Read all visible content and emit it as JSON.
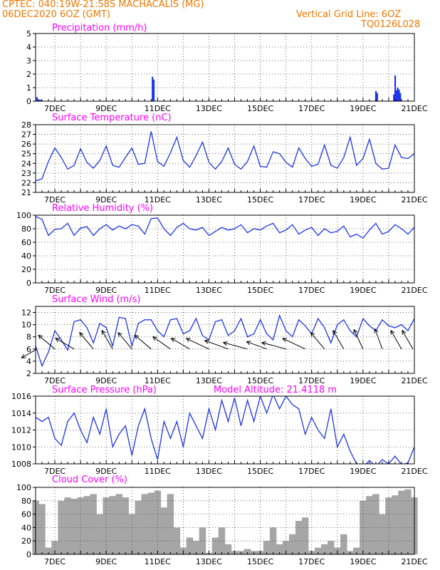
{
  "header": {
    "line1_left": "CPTEC:   040:19W-21:58S   MACHACALIS (MG)",
    "line2_left": "06DEC2020 6OZ (GMT)",
    "line1_right": "Vertical Grid Line: 6OZ",
    "line2_right": "TQ0126L028"
  },
  "colors": {
    "header": "#f07800",
    "title": "#ff00ff",
    "line": "#1f35e8",
    "cloud": "#a6a6a6"
  },
  "chart_data": [
    {
      "id": "precip",
      "type": "bar",
      "title": "Precipitation (mm/h)",
      "ylim": [
        0,
        5
      ],
      "yticks": [
        0,
        1,
        2,
        3,
        4,
        5
      ],
      "xlim": [
        6.25,
        21.0
      ],
      "xticks": [
        7,
        9,
        11,
        13,
        15,
        17,
        19,
        21
      ],
      "xticklabels": [
        "7DEC",
        "9DEC",
        "11DEC",
        "13DEC",
        "15DEC",
        "17DEC",
        "19DEC",
        "21DEC"
      ],
      "x": [
        6.3,
        6.35,
        6.4,
        6.45,
        10.8,
        10.85,
        19.5,
        19.55,
        20.2,
        20.25,
        20.3,
        20.35,
        20.4,
        20.45
      ],
      "values": [
        0.3,
        0.15,
        0.1,
        0.1,
        1.8,
        1.6,
        0.75,
        0.6,
        0.5,
        1.9,
        0.8,
        1.0,
        0.85,
        0.6
      ]
    },
    {
      "id": "temp",
      "type": "line",
      "title": "Surface Temperature (nC)",
      "ylim": [
        21,
        28
      ],
      "yticks": [
        21,
        22,
        23,
        24,
        25,
        26,
        27,
        28
      ],
      "xlim": [
        6.25,
        21.0
      ],
      "xticks": [
        7,
        9,
        11,
        13,
        15,
        17,
        19,
        21
      ],
      "xticklabels": [
        "7DEC",
        "9DEC",
        "11DEC",
        "13DEC",
        "15DEC",
        "17DEC",
        "19DEC",
        "21DEC"
      ],
      "x": [
        6.25,
        6.5,
        6.75,
        7.0,
        7.25,
        7.5,
        7.75,
        8.0,
        8.25,
        8.5,
        8.75,
        9.0,
        9.25,
        9.5,
        9.75,
        10.0,
        10.25,
        10.5,
        10.75,
        11.0,
        11.25,
        11.5,
        11.75,
        12.0,
        12.25,
        12.5,
        12.75,
        13.0,
        13.25,
        13.5,
        13.75,
        14.0,
        14.25,
        14.5,
        14.75,
        15.0,
        15.25,
        15.5,
        15.75,
        16.0,
        16.25,
        16.5,
        16.75,
        17.0,
        17.25,
        17.5,
        17.75,
        18.0,
        18.25,
        18.5,
        18.75,
        19.0,
        19.25,
        19.5,
        19.75,
        20.0,
        20.25,
        20.5,
        20.75,
        21.0
      ],
      "values": [
        22.2,
        22.4,
        24.2,
        25.6,
        24.6,
        23.4,
        23.8,
        25.5,
        24.1,
        23.5,
        24.3,
        25.8,
        23.8,
        23.6,
        24.6,
        25.6,
        23.9,
        24.0,
        27.3,
        24.2,
        23.7,
        25.1,
        26.7,
        24.3,
        23.6,
        24.8,
        26.2,
        24.1,
        23.4,
        24.2,
        25.6,
        23.9,
        23.4,
        24.2,
        25.8,
        23.7,
        23.6,
        25.2,
        25.0,
        24.1,
        23.6,
        25.6,
        24.5,
        23.7,
        23.9,
        25.9,
        23.8,
        23.5,
        24.6,
        26.7,
        23.8,
        24.5,
        26.5,
        24.0,
        23.4,
        23.5,
        25.9,
        24.6,
        24.5,
        25.0
      ]
    },
    {
      "id": "rh",
      "type": "line",
      "title": "Relative Humidity (%)",
      "ylim": [
        0,
        100
      ],
      "yticks": [
        0,
        20,
        40,
        60,
        80,
        100
      ],
      "xlim": [
        6.25,
        21.0
      ],
      "xticks": [
        7,
        9,
        11,
        13,
        15,
        17,
        19,
        21
      ],
      "xticklabels": [
        "7DEC",
        "9DEC",
        "11DEC",
        "13DEC",
        "15DEC",
        "17DEC",
        "19DEC",
        "21DEC"
      ],
      "x": [
        6.25,
        6.5,
        6.75,
        7.0,
        7.25,
        7.5,
        7.75,
        8.0,
        8.25,
        8.5,
        8.75,
        9.0,
        9.25,
        9.5,
        9.75,
        10.0,
        10.25,
        10.5,
        10.75,
        11.0,
        11.25,
        11.5,
        11.75,
        12.0,
        12.25,
        12.5,
        12.75,
        13.0,
        13.25,
        13.5,
        13.75,
        14.0,
        14.25,
        14.5,
        14.75,
        15.0,
        15.25,
        15.5,
        15.75,
        16.0,
        16.25,
        16.5,
        16.75,
        17.0,
        17.25,
        17.5,
        17.75,
        18.0,
        18.25,
        18.5,
        18.75,
        19.0,
        19.25,
        19.5,
        19.75,
        20.0,
        20.25,
        20.5,
        20.75,
        21.0
      ],
      "values": [
        98,
        94,
        70,
        79,
        80,
        88,
        70,
        81,
        83,
        70,
        80,
        86,
        78,
        84,
        80,
        86,
        84,
        72,
        95,
        96,
        80,
        70,
        82,
        88,
        80,
        78,
        82,
        70,
        76,
        82,
        78,
        80,
        86,
        74,
        80,
        78,
        84,
        88,
        74,
        78,
        86,
        72,
        78,
        82,
        70,
        80,
        74,
        76,
        84,
        68,
        72,
        66,
        78,
        88,
        72,
        76,
        86,
        80,
        72,
        82
      ]
    },
    {
      "id": "wind",
      "type": "line",
      "title": "Surface Wind (m/s)",
      "ylim": [
        2,
        13
      ],
      "yticks": [
        2,
        4,
        6,
        8,
        10,
        12
      ],
      "xlim": [
        6.25,
        21.0
      ],
      "xticks": [
        7,
        9,
        11,
        13,
        15,
        17,
        19,
        21
      ],
      "xticklabels": [
        "7DEC",
        "9DEC",
        "11DEC",
        "13DEC",
        "15DEC",
        "17DEC",
        "19DEC",
        "21DEC"
      ],
      "x": [
        6.25,
        6.5,
        6.75,
        7.0,
        7.25,
        7.5,
        7.75,
        8.0,
        8.25,
        8.5,
        8.75,
        9.0,
        9.25,
        9.5,
        9.75,
        10.0,
        10.25,
        10.5,
        10.75,
        11.0,
        11.25,
        11.5,
        11.75,
        12.0,
        12.25,
        12.5,
        12.75,
        13.0,
        13.25,
        13.5,
        13.75,
        14.0,
        14.25,
        14.5,
        14.75,
        15.0,
        15.25,
        15.5,
        15.75,
        16.0,
        16.25,
        16.5,
        16.75,
        17.0,
        17.25,
        17.5,
        17.75,
        18.0,
        18.25,
        18.5,
        18.75,
        19.0,
        19.25,
        19.5,
        19.75,
        20.0,
        20.25,
        20.5,
        20.75,
        21.0
      ],
      "values": [
        6.5,
        3.2,
        5.5,
        9.0,
        7.5,
        5.8,
        10.5,
        10.8,
        9.5,
        7.0,
        10.2,
        9.5,
        6.5,
        11.2,
        11.0,
        6.5,
        10.2,
        10.8,
        10.8,
        9.0,
        8.0,
        10.8,
        11.0,
        8.5,
        9.0,
        11.0,
        8.2,
        7.5,
        10.5,
        10.8,
        8.2,
        9.0,
        11.0,
        8.0,
        8.5,
        10.8,
        8.5,
        7.5,
        11.5,
        9.0,
        8.0,
        10.8,
        9.8,
        8.5,
        11.0,
        9.5,
        7.0,
        10.0,
        10.8,
        9.0,
        8.0,
        11.0,
        9.8,
        9.0,
        10.8,
        9.8,
        9.5,
        10.0,
        9.0,
        11.0
      ],
      "vector_x": [
        6.25,
        7.0,
        7.75,
        8.5,
        9.25,
        10.0,
        10.75,
        11.5,
        12.25,
        13.0,
        13.75,
        14.5,
        15.25,
        16.0,
        16.75,
        17.5,
        18.25,
        19.0,
        19.75,
        20.5,
        21.0
      ],
      "vector_dir_deg": [
        150,
        220,
        210,
        230,
        240,
        230,
        220,
        215,
        210,
        205,
        200,
        195,
        200,
        195,
        205,
        230,
        240,
        245,
        250,
        240,
        240
      ],
      "vector_len": [
        5,
        6,
        6,
        6,
        6,
        6,
        6,
        6,
        6,
        7,
        7,
        7,
        6,
        7,
        7,
        6,
        6,
        6,
        6,
        6,
        6
      ]
    },
    {
      "id": "pressure",
      "type": "line",
      "title": "Surface Pressure (hPa)",
      "annotation": "Model Altitude: 21.4118 m",
      "ylim": [
        1008,
        1016
      ],
      "yticks": [
        1008,
        1010,
        1012,
        1014,
        1016
      ],
      "xlim": [
        6.25,
        21.0
      ],
      "xticks": [
        7,
        9,
        11,
        13,
        15,
        17,
        19,
        21
      ],
      "xticklabels": [
        "7DEC",
        "9DEC",
        "11DEC",
        "13DEC",
        "15DEC",
        "17DEC",
        "19DEC",
        "21DEC"
      ],
      "x": [
        6.25,
        6.5,
        6.75,
        7.0,
        7.25,
        7.5,
        7.75,
        8.0,
        8.25,
        8.5,
        8.75,
        9.0,
        9.25,
        9.5,
        9.75,
        10.0,
        10.25,
        10.5,
        10.75,
        11.0,
        11.25,
        11.5,
        11.75,
        12.0,
        12.25,
        12.5,
        12.75,
        13.0,
        13.25,
        13.5,
        13.75,
        14.0,
        14.25,
        14.5,
        14.75,
        15.0,
        15.25,
        15.5,
        15.75,
        16.0,
        16.25,
        16.5,
        16.75,
        17.0,
        17.25,
        17.5,
        17.75,
        18.0,
        18.25,
        18.5,
        18.75,
        19.0,
        19.25,
        19.5,
        19.75,
        20.0,
        20.25,
        20.5,
        20.75,
        21.0
      ],
      "values": [
        1013.5,
        1013.0,
        1013.5,
        1011.0,
        1010.2,
        1013.0,
        1014.0,
        1012.0,
        1010.5,
        1013.5,
        1011.5,
        1014.5,
        1010.0,
        1011.5,
        1012.5,
        1009.0,
        1012.5,
        1014.5,
        1011.0,
        1008.5,
        1013.0,
        1011.0,
        1013.0,
        1010.0,
        1014.0,
        1012.5,
        1011.0,
        1014.5,
        1012.0,
        1015.5,
        1013.0,
        1015.8,
        1012.5,
        1015.5,
        1013.0,
        1016.0,
        1014.0,
        1016.2,
        1014.5,
        1016.0,
        1015.0,
        1014.5,
        1011.5,
        1013.5,
        1012.0,
        1011.0,
        1014.5,
        1010.0,
        1011.5,
        1009.5,
        1008.0,
        1007.6,
        1008.4,
        1007.7,
        1008.5,
        1008.0,
        1008.9,
        1007.9,
        1008.1,
        1010.0
      ]
    },
    {
      "id": "cloud",
      "type": "area",
      "title": "Cloud Cover (%)",
      "ylim": [
        0,
        100
      ],
      "yticks": [
        0,
        20,
        40,
        60,
        80,
        100
      ],
      "xlim": [
        6.25,
        21.0
      ],
      "xticks": [
        7,
        9,
        11,
        13,
        15,
        17,
        19,
        21
      ],
      "xticklabels": [
        "7DEC",
        "9DEC",
        "11DEC",
        "13DEC",
        "15DEC",
        "17DEC",
        "19DEC",
        "21DEC"
      ],
      "x": [
        6.25,
        6.5,
        6.75,
        7.0,
        7.25,
        7.5,
        7.75,
        8.0,
        8.25,
        8.5,
        8.75,
        9.0,
        9.25,
        9.5,
        9.75,
        10.0,
        10.25,
        10.5,
        10.75,
        11.0,
        11.25,
        11.5,
        11.75,
        12.0,
        12.25,
        12.5,
        12.75,
        13.0,
        13.25,
        13.5,
        13.75,
        14.0,
        14.25,
        14.5,
        14.75,
        15.0,
        15.25,
        15.5,
        15.75,
        16.0,
        16.25,
        16.5,
        16.75,
        17.0,
        17.25,
        17.5,
        17.75,
        18.0,
        18.25,
        18.5,
        18.75,
        19.0,
        19.25,
        19.5,
        19.75,
        20.0,
        20.25,
        20.5,
        20.75,
        21.0
      ],
      "values": [
        80,
        75,
        10,
        20,
        80,
        85,
        83,
        85,
        87,
        90,
        60,
        85,
        87,
        90,
        85,
        60,
        80,
        90,
        92,
        95,
        70,
        90,
        40,
        10,
        25,
        20,
        40,
        2,
        25,
        40,
        15,
        5,
        5,
        8,
        5,
        5,
        20,
        40,
        15,
        20,
        30,
        50,
        55,
        5,
        10,
        15,
        20,
        10,
        30,
        5,
        10,
        80,
        87,
        90,
        60,
        85,
        88,
        95,
        97,
        85
      ]
    }
  ]
}
